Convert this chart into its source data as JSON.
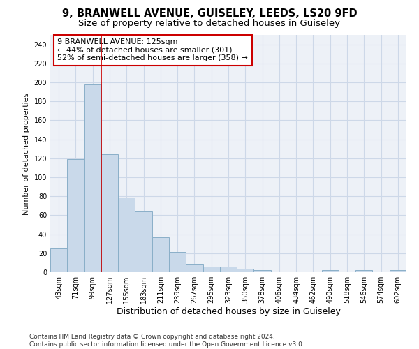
{
  "title1": "9, BRANWELL AVENUE, GUISELEY, LEEDS, LS20 9FD",
  "title2": "Size of property relative to detached houses in Guiseley",
  "xlabel": "Distribution of detached houses by size in Guiseley",
  "ylabel": "Number of detached properties",
  "bar_labels": [
    "43sqm",
    "71sqm",
    "99sqm",
    "127sqm",
    "155sqm",
    "183sqm",
    "211sqm",
    "239sqm",
    "267sqm",
    "295sqm",
    "323sqm",
    "350sqm",
    "378sqm",
    "406sqm",
    "434sqm",
    "462sqm",
    "490sqm",
    "518sqm",
    "546sqm",
    "574sqm",
    "602sqm"
  ],
  "bar_values": [
    25,
    119,
    198,
    124,
    79,
    64,
    37,
    21,
    9,
    6,
    6,
    4,
    2,
    0,
    0,
    0,
    2,
    0,
    2,
    0,
    2
  ],
  "bar_color": "#c9d9ea",
  "bar_edge_color": "#8aafc8",
  "vline_x_idx": 3,
  "vline_color": "#cc0000",
  "annotation_line1": "9 BRANWELL AVENUE: 125sqm",
  "annotation_line2": "← 44% of detached houses are smaller (301)",
  "annotation_line3": "52% of semi-detached houses are larger (358) →",
  "annotation_box_color": "#ffffff",
  "annotation_edge_color": "#cc0000",
  "footer_text": "Contains HM Land Registry data © Crown copyright and database right 2024.\nContains public sector information licensed under the Open Government Licence v3.0.",
  "ylim": [
    0,
    250
  ],
  "yticks": [
    0,
    20,
    40,
    60,
    80,
    100,
    120,
    140,
    160,
    180,
    200,
    220,
    240
  ],
  "grid_color": "#cdd8e8",
  "bg_color": "#edf1f7",
  "title1_fontsize": 10.5,
  "title2_fontsize": 9.5,
  "xlabel_fontsize": 9,
  "ylabel_fontsize": 8,
  "tick_fontsize": 7,
  "annotation_fontsize": 8,
  "footer_fontsize": 6.5
}
